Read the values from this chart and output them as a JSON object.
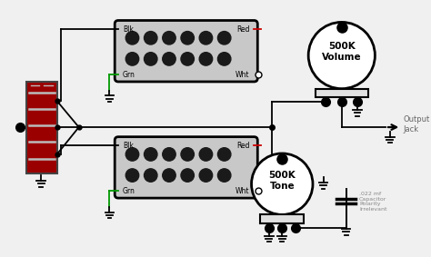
{
  "bg_color": "#f0f0f0",
  "line_color": "#000000",
  "red_color": "#cc0000",
  "green_color": "#009900",
  "dark_red": "#8b0000",
  "pickup_fill": "#1a1a1a",
  "wire_lw": 1.3,
  "output_jack_label": "Output\nJack",
  "volume_label": "500K\nVolume",
  "tone_label": "500K\nTone",
  "cap_label": ".022 mf\nCapacitor\nPolarity\nIrrelevant"
}
